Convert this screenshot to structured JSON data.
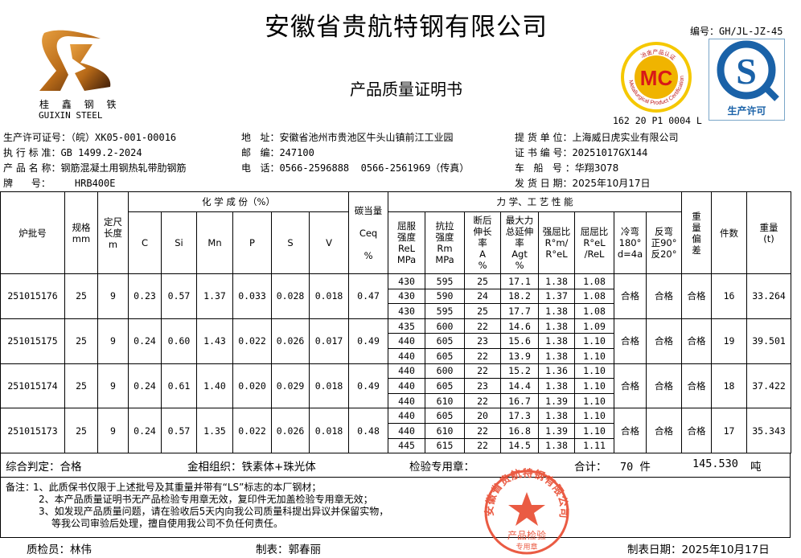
{
  "header": {
    "company": "安徽省贵航特钢有限公司",
    "doc_title": "产品质量证明书",
    "doc_no": "编号：GH/JL-JZ-45",
    "logo": {
      "cn": "桂 鑫 钢 铁",
      "en": "GUIXIN STEEL"
    },
    "mc_badge": {
      "text": "MC",
      "ring_cn": "冶金产品认证",
      "ring_en": "Metallurgical Product Certification",
      "code": "162 20 P1 0004 L"
    },
    "qs_badge": {
      "text": "生产许可"
    }
  },
  "info": {
    "license": {
      "label": "生产许可证号：",
      "value": "（皖）XK05-001-00016"
    },
    "standard": {
      "label": "执 行 标 准：",
      "value": "GB 1499.2-2024"
    },
    "product": {
      "label": "产 品 名 称：",
      "value": "钢筋混凝土用钢热轧带肋钢筋"
    },
    "grade": {
      "label": "牌      号：",
      "value": "HRB400E"
    },
    "address": {
      "label": "地   址：",
      "value": "安徽省池州市贵池区牛头山镇前江工业园"
    },
    "postcode": {
      "label": "邮   编：",
      "value": "247100"
    },
    "phone": {
      "label": "电   话：",
      "value": "0566-2596888  0566-2561969（传真）"
    },
    "consignee": {
      "label": "提 货 单 位：",
      "value": "上海威日虎实业有限公司"
    },
    "cert_no": {
      "label": "证 书 编 号：",
      "value": "20251017GX144"
    },
    "vehicle": {
      "label": "车   船   号 ：",
      "value": "华翔3078"
    },
    "ship_date": {
      "label": "发 货 日 期：",
      "value": "2025年10月17日"
    }
  },
  "table": {
    "headers": {
      "batch": "炉批号",
      "spec": "规格\nmm",
      "length": "定尺\n长度\nm",
      "chem": "化 学 成 份（%）",
      "chem_cols": [
        "C",
        "Si",
        "Mn",
        "P",
        "S",
        "V"
      ],
      "ceq": "碳当量\n\nCeq\n\n%",
      "mech": "力 学、工 艺 性 能",
      "mech_cols": [
        "屈服\n强度\nReL\nMPa",
        "抗拉\n强度\nRm\nMPa",
        "断后\n伸长\n率\nA\n%",
        "最大力\n总延伸\n率\nAgt\n%",
        "强屈比\nR°m/\nR°eL",
        "屈屈比\nR°eL\n/ReL",
        "冷弯\n180°\nd=4a",
        "反弯\n正90°\n反20°"
      ],
      "weight_dev": "重\n量\n偏\n差",
      "count": "件数",
      "weight": "重量\n(t)"
    },
    "rows": [
      {
        "batch": "251015176",
        "spec": "25",
        "length": "9",
        "chem": [
          "0.23",
          "0.57",
          "1.37",
          "0.033",
          "0.028",
          "0.018"
        ],
        "ceq": "0.47",
        "mech": [
          [
            "430",
            "595",
            "25",
            "17.1",
            "1.38",
            "1.08"
          ],
          [
            "430",
            "590",
            "24",
            "18.2",
            "1.37",
            "1.08"
          ],
          [
            "430",
            "595",
            "25",
            "17.7",
            "1.38",
            "1.08"
          ]
        ],
        "cold_bend": "合格",
        "reverse_bend": "合格",
        "weight_dev": "合格",
        "count": "16",
        "weight": "33.264"
      },
      {
        "batch": "251015175",
        "spec": "25",
        "length": "9",
        "chem": [
          "0.24",
          "0.60",
          "1.43",
          "0.022",
          "0.026",
          "0.017"
        ],
        "ceq": "0.49",
        "mech": [
          [
            "435",
            "600",
            "22",
            "14.6",
            "1.38",
            "1.09"
          ],
          [
            "440",
            "605",
            "23",
            "15.6",
            "1.38",
            "1.10"
          ],
          [
            "440",
            "605",
            "22",
            "13.9",
            "1.38",
            "1.10"
          ]
        ],
        "cold_bend": "合格",
        "reverse_bend": "合格",
        "weight_dev": "合格",
        "count": "19",
        "weight": "39.501"
      },
      {
        "batch": "251015174",
        "spec": "25",
        "length": "9",
        "chem": [
          "0.24",
          "0.61",
          "1.40",
          "0.020",
          "0.029",
          "0.018"
        ],
        "ceq": "0.49",
        "mech": [
          [
            "440",
            "600",
            "22",
            "15.2",
            "1.36",
            "1.10"
          ],
          [
            "440",
            "605",
            "23",
            "14.4",
            "1.38",
            "1.10"
          ],
          [
            "440",
            "610",
            "22",
            "16.7",
            "1.39",
            "1.10"
          ]
        ],
        "cold_bend": "合格",
        "reverse_bend": "合格",
        "weight_dev": "合格",
        "count": "18",
        "weight": "37.422"
      },
      {
        "batch": "251015173",
        "spec": "25",
        "length": "9",
        "chem": [
          "0.24",
          "0.57",
          "1.35",
          "0.022",
          "0.026",
          "0.018"
        ],
        "ceq": "0.48",
        "mech": [
          [
            "440",
            "605",
            "20",
            "17.3",
            "1.38",
            "1.10"
          ],
          [
            "440",
            "610",
            "22",
            "16.8",
            "1.39",
            "1.10"
          ],
          [
            "445",
            "615",
            "22",
            "14.5",
            "1.38",
            "1.11"
          ]
        ],
        "cold_bend": "合格",
        "reverse_bend": "合格",
        "weight_dev": "合格",
        "count": "17",
        "weight": "35.343"
      }
    ]
  },
  "summary": {
    "verdict": "综合判定：合格",
    "structure": "金相组织：铁素体+珠光体",
    "stamp_label": "检验专用章：",
    "total_label": "合计：",
    "total_count": "70 件",
    "total_weight": "145.530",
    "weight_unit": "吨"
  },
  "notes": {
    "label": "备注：",
    "lines": [
      "1、此质保书仅限于上述批号及其重量并带有“LS”标志的本厂钢材；",
      "2、本产品质量证明书无产品检验专用章无效，复印件无加盖检验专用章无效；",
      "3、如发现产品质量问题，请在验收后5天内向我公司质量科提出异议并保留实物，",
      "等我公司审验后处理，擅自使用我公司不负任何责任。"
    ]
  },
  "stamp": {
    "ring": "安徽省贵航特钢有限公司",
    "center": "产品检验",
    "bottom": "专用章",
    "color": "#e8452a"
  },
  "footer": {
    "inspector": "质检员：林伟",
    "preparer": "制表：郭春丽",
    "prepared_date": "制表日期：2025年10月17日"
  }
}
